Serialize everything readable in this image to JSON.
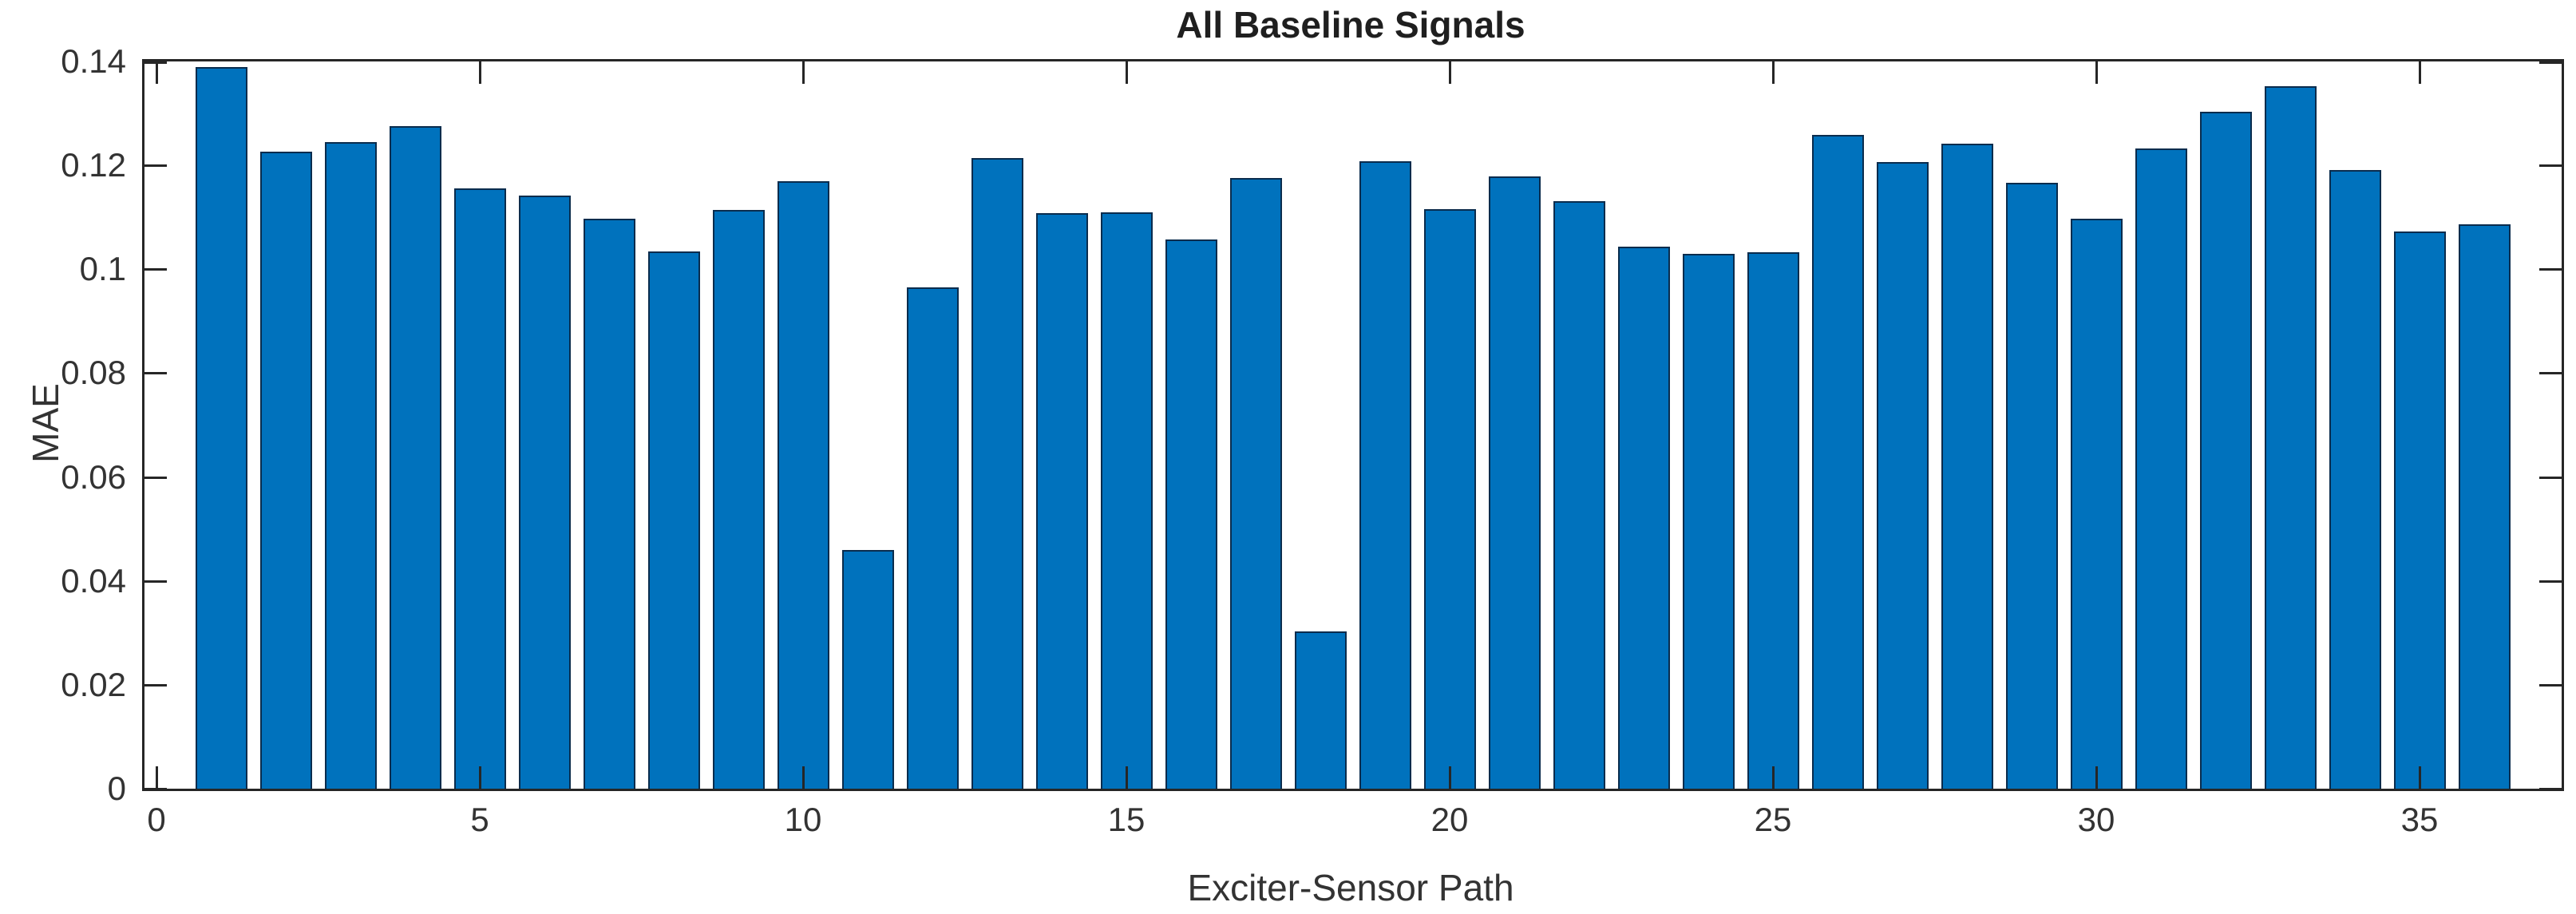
{
  "chart_data": {
    "type": "bar",
    "title": "All Baseline Signals",
    "xlabel": "Exciter-Sensor Path",
    "ylabel": "MAE",
    "categories": [
      1,
      2,
      3,
      4,
      5,
      6,
      7,
      8,
      9,
      10,
      11,
      12,
      13,
      14,
      15,
      16,
      17,
      18,
      19,
      20,
      21,
      22,
      23,
      24,
      25,
      26,
      27,
      28,
      29,
      30,
      31,
      32,
      33,
      34,
      35,
      36
    ],
    "values": [
      0.139,
      0.1227,
      0.1245,
      0.1275,
      0.1155,
      0.1142,
      0.1098,
      0.1035,
      0.1114,
      0.117,
      0.046,
      0.0965,
      0.1214,
      0.1108,
      0.1109,
      0.1058,
      0.1175,
      0.0302,
      0.1208,
      0.1115,
      0.1178,
      0.1131,
      0.1043,
      0.1029,
      0.1033,
      0.1258,
      0.1206,
      0.1242,
      0.1166,
      0.1098,
      0.1233,
      0.1303,
      0.1352,
      0.1191,
      0.1072,
      0.1086
    ],
    "ylim": [
      0,
      0.14
    ],
    "x_ticks": [
      0,
      5,
      10,
      15,
      20,
      25,
      30,
      35
    ],
    "x_tick_labels": [
      "0",
      "5",
      "10",
      "15",
      "20",
      "25",
      "30",
      "35"
    ],
    "y_ticks": [
      0,
      0.02,
      0.04,
      0.06,
      0.08,
      0.1,
      0.12,
      0.14
    ],
    "y_tick_labels": [
      "0",
      "0.02",
      "0.04",
      "0.06",
      "0.08",
      "0.1",
      "0.12",
      "0.14"
    ],
    "grid": false,
    "legend_position": "none",
    "tick_direction": "in",
    "box": true,
    "colors": {
      "bar_face": "#0072BD",
      "bar_edge": "#0a2c4d",
      "axis": "#262626",
      "text": "#333333",
      "background": "#ffffff"
    }
  }
}
